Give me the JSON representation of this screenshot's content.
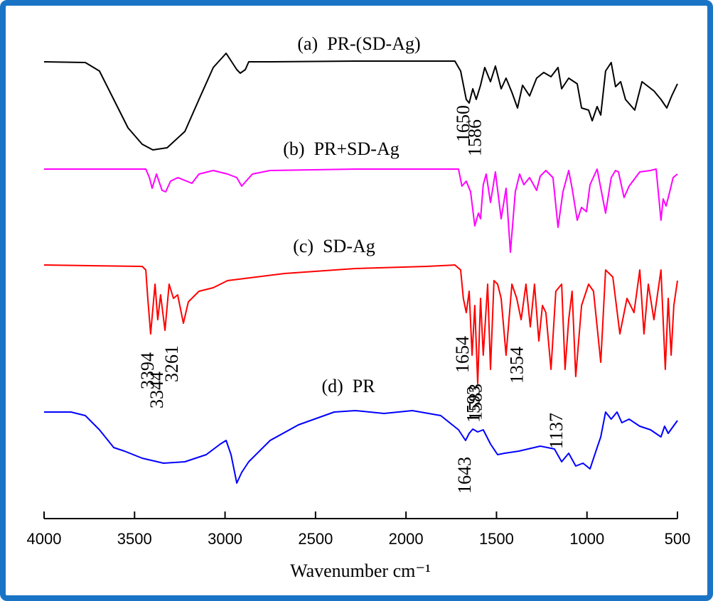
{
  "chart_data": {
    "type": "line",
    "x_label": "Wavenumber cm⁻¹",
    "xlim": [
      4000,
      500
    ],
    "xticks": [
      4000,
      3500,
      3000,
      2500,
      2000,
      1500,
      1000,
      500
    ],
    "ylim": [
      0,
      705
    ],
    "series": [
      {
        "name": "(a)  PR-(SD-Ag)",
        "color": "#000000",
        "peaks": [
          1650,
          1586
        ],
        "x": [
          4000,
          3772,
          3694,
          3615,
          3536,
          3458,
          3399,
          3320,
          3222,
          3144,
          3065,
          2994,
          2935,
          2916,
          2888,
          2869,
          2751,
          2280,
          1730,
          1698,
          1667,
          1651,
          1631,
          1612,
          1588,
          1565,
          1533,
          1506,
          1474,
          1447,
          1415,
          1384,
          1356,
          1317,
          1278,
          1239,
          1199,
          1160,
          1140,
          1101,
          1054,
          1030,
          991,
          971,
          944,
          924,
          897,
          866,
          842,
          814,
          787,
          736,
          696,
          630,
          591,
          559,
          532,
          500
        ],
        "values": [
          643,
          642,
          630,
          590,
          550,
          527,
          519,
          522,
          545,
          590,
          635,
          655,
          632,
          627,
          632,
          643,
          643,
          644,
          644,
          630,
          590,
          585,
          605,
          590,
          610,
          635,
          615,
          637,
          605,
          620,
          600,
          578,
          610,
          595,
          620,
          628,
          622,
          635,
          605,
          620,
          612,
          578,
          575,
          560,
          580,
          568,
          630,
          642,
          608,
          615,
          590,
          575,
          615,
          602,
          590,
          578,
          595,
          612
        ]
      },
      {
        "name": "(b)  PR+SD-Ag",
        "color": "#ff00ff",
        "peaks": [],
        "x": [
          4000,
          3438,
          3418,
          3403,
          3379,
          3348,
          3328,
          3301,
          3261,
          3183,
          3144,
          3065,
          2986,
          2935,
          2908,
          2849,
          2751,
          2280,
          1710,
          1691,
          1667,
          1643,
          1620,
          1600,
          1588,
          1573,
          1557,
          1533,
          1506,
          1474,
          1447,
          1423,
          1396,
          1372,
          1349,
          1317,
          1278,
          1258,
          1227,
          1188,
          1160,
          1133,
          1101,
          1082,
          1054,
          1030,
          1003,
          983,
          944,
          897,
          866,
          842,
          826,
          795,
          767,
          708,
          649,
          618,
          591,
          579,
          563,
          543,
          524,
          500
        ],
        "values": [
          492,
          492,
          480,
          465,
          485,
          462,
          460,
          475,
          480,
          472,
          485,
          490,
          485,
          480,
          468,
          485,
          490,
          492,
          492,
          468,
          475,
          460,
          412,
          430,
          422,
          470,
          485,
          445,
          488,
          422,
          465,
          375,
          460,
          485,
          470,
          480,
          462,
          482,
          490,
          480,
          410,
          460,
          490,
          465,
          420,
          438,
          432,
          470,
          492,
          430,
          480,
          490,
          488,
          452,
          468,
          488,
          490,
          492,
          420,
          450,
          440,
          460,
          480,
          485
        ]
      },
      {
        "name": "(c)  SD-Ag",
        "color": "#ff0000",
        "peaks": [
          3394,
          3344,
          3261,
          1654,
          1593,
          1583,
          1354,
          1137
        ],
        "x": [
          4000,
          3458,
          3438,
          3427,
          3411,
          3387,
          3372,
          3356,
          3332,
          3309,
          3285,
          3262,
          3230,
          3203,
          3144,
          3065,
          2986,
          2672,
          2280,
          1887,
          1730,
          1698,
          1683,
          1667,
          1651,
          1635,
          1620,
          1604,
          1588,
          1573,
          1549,
          1533,
          1514,
          1494,
          1474,
          1447,
          1415,
          1388,
          1364,
          1337,
          1313,
          1290,
          1266,
          1246,
          1227,
          1199,
          1172,
          1140,
          1121,
          1101,
          1082,
          1062,
          1030,
          991,
          964,
          924,
          897,
          857,
          818,
          779,
          740,
          708,
          685,
          661,
          630,
          591,
          567,
          551,
          535,
          520,
          500
        ],
        "values": [
          357,
          355,
          350,
          310,
          260,
          330,
          280,
          315,
          265,
          330,
          310,
          315,
          275,
          305,
          320,
          325,
          335,
          345,
          352,
          355,
          357,
          350,
          310,
          290,
          320,
          230,
          300,
          190,
          310,
          230,
          330,
          210,
          335,
          330,
          310,
          230,
          330,
          310,
          280,
          330,
          270,
          330,
          250,
          300,
          290,
          210,
          320,
          330,
          210,
          280,
          320,
          200,
          300,
          330,
          320,
          220,
          350,
          340,
          260,
          310,
          290,
          350,
          260,
          330,
          280,
          350,
          210,
          310,
          230,
          300,
          335
        ]
      },
      {
        "name": "(d)  PR",
        "color": "#0000ff",
        "peaks": [
          1643
        ],
        "x": [
          4000,
          3851,
          3772,
          3694,
          3615,
          3556,
          3458,
          3340,
          3222,
          3104,
          3026,
          2994,
          2967,
          2935,
          2908,
          2869,
          2751,
          2594,
          2397,
          2280,
          2122,
          1965,
          1808,
          1710,
          1671,
          1651,
          1631,
          1604,
          1573,
          1533,
          1494,
          1455,
          1376,
          1258,
          1180,
          1140,
          1101,
          1062,
          1022,
          983,
          944,
          924,
          897,
          866,
          834,
          807,
          767,
          708,
          649,
          591,
          571,
          551,
          500
        ],
        "values": [
          150,
          150,
          145,
          125,
          100,
          95,
          85,
          78,
          80,
          90,
          105,
          110,
          90,
          50,
          65,
          80,
          110,
          132,
          150,
          152,
          148,
          152,
          145,
          125,
          110,
          120,
          126,
          122,
          125,
          105,
          90,
          92,
          95,
          102,
          98,
          80,
          92,
          74,
          78,
          70,
          100,
          115,
          150,
          140,
          150,
          135,
          140,
          130,
          125,
          115,
          130,
          120,
          138
        ]
      }
    ]
  }
}
